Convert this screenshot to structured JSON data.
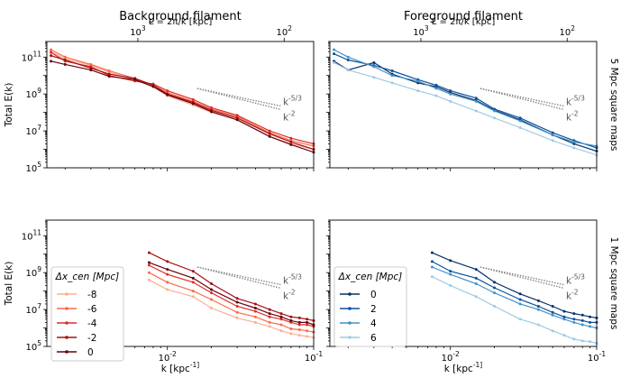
{
  "chart_data": [
    {
      "type": "line",
      "row": 0,
      "col": 0,
      "title": "Background filament",
      "top_axis_label": "L = 2π/k [kpc]",
      "top_ticks": [
        "10^3",
        "10^2"
      ],
      "xlabel": "",
      "ylabel": "Total E(k)",
      "xscale": "log",
      "yscale": "log",
      "xlim": [
        0.0015,
        0.1
      ],
      "ylim": [
        100000,
        700000000000
      ],
      "ref_lines": [
        {
          "label": "k^-5/3",
          "slope": -1.667
        },
        {
          "label": "k^-2",
          "slope": -2
        }
      ],
      "series": [
        {
          "name": "-8",
          "color": "#fcae91",
          "x": [
            0.0016,
            0.002,
            0.003,
            0.004,
            0.006,
            0.008,
            0.01,
            0.015,
            0.02,
            0.03,
            0.05,
            0.07,
            0.1
          ],
          "y": [
            200000000000,
            80000000000,
            35000000000,
            15000000000,
            6000000000,
            2500000000,
            800000000,
            250000000,
            100000000,
            40000000,
            5000000,
            2000000,
            1000000
          ]
        },
        {
          "name": "-6",
          "color": "#fb6a4a",
          "x": [
            0.0016,
            0.002,
            0.003,
            0.004,
            0.006,
            0.008,
            0.01,
            0.015,
            0.02,
            0.03,
            0.05,
            0.07,
            0.1
          ],
          "y": [
            250000000000,
            100000000000,
            40000000000,
            18000000000,
            7000000000,
            3000000000,
            1200000000,
            400000000,
            150000000,
            60000000,
            8000000,
            3000000,
            1500000
          ]
        },
        {
          "name": "-4",
          "color": "#de2d26",
          "x": [
            0.0016,
            0.002,
            0.003,
            0.004,
            0.006,
            0.008,
            0.01,
            0.015,
            0.02,
            0.03,
            0.05,
            0.07,
            0.1
          ],
          "y": [
            180000000000,
            60000000000,
            30000000000,
            10000000000,
            5000000000,
            3500000000,
            1500000000,
            500000000,
            180000000,
            70000000,
            10000000,
            4000000,
            2000000
          ]
        },
        {
          "name": "-2",
          "color": "#a50f15",
          "x": [
            0.0016,
            0.002,
            0.003,
            0.004,
            0.006,
            0.008,
            0.01,
            0.015,
            0.02,
            0.03,
            0.05,
            0.07,
            0.1
          ],
          "y": [
            120000000000,
            70000000000,
            25000000000,
            12000000000,
            7000000000,
            3000000000,
            1000000000,
            350000000,
            130000000,
            50000000,
            7000000,
            2500000,
            1000000
          ]
        },
        {
          "name": "0",
          "color": "#67000d",
          "x": [
            0.0016,
            0.002,
            0.003,
            0.004,
            0.006,
            0.008,
            0.01,
            0.015,
            0.02,
            0.03,
            0.05,
            0.07,
            0.1
          ],
          "y": [
            60000000000,
            40000000000,
            20000000000,
            9000000000,
            6000000000,
            2500000000,
            900000000,
            300000000,
            110000000,
            40000000,
            5000000,
            1800000,
            700000
          ]
        }
      ]
    },
    {
      "type": "line",
      "row": 0,
      "col": 1,
      "title": "Foreground filament",
      "top_axis_label": "L = 2π/k [kpc]",
      "top_ticks": [
        "10^3",
        "10^2"
      ],
      "xlabel": "",
      "ylabel": "",
      "right_label": "5 Mpc square maps",
      "xscale": "log",
      "yscale": "log",
      "xlim": [
        0.0015,
        0.1
      ],
      "ylim": [
        100000,
        700000000000
      ],
      "ref_lines": [
        {
          "label": "k^-5/3",
          "slope": -1.667
        },
        {
          "label": "k^-2",
          "slope": -2
        }
      ],
      "series": [
        {
          "name": "0",
          "color": "#08306b",
          "x": [
            0.0016,
            0.002,
            0.003,
            0.004,
            0.006,
            0.008,
            0.01,
            0.015,
            0.02,
            0.03,
            0.05,
            0.07,
            0.1
          ],
          "y": [
            60000000000,
            20000000000,
            50000000000,
            12000000000,
            4000000000,
            2500000000,
            1200000000,
            450000000,
            130000000,
            40000000,
            6000000,
            2000000,
            800000
          ]
        },
        {
          "name": "2",
          "color": "#08519c",
          "x": [
            0.0016,
            0.002,
            0.003,
            0.004,
            0.006,
            0.008,
            0.01,
            0.015,
            0.02,
            0.03,
            0.05,
            0.07,
            0.1
          ],
          "y": [
            150000000000,
            70000000000,
            35000000000,
            18000000000,
            6000000000,
            3000000000,
            1500000000,
            600000000,
            150000000,
            50000000,
            8000000,
            3000000,
            1200000
          ]
        },
        {
          "name": "4",
          "color": "#4292c6",
          "x": [
            0.0016,
            0.002,
            0.003,
            0.004,
            0.006,
            0.008,
            0.01,
            0.015,
            0.02,
            0.03,
            0.05,
            0.07,
            0.1
          ],
          "y": [
            250000000000,
            100000000000,
            30000000000,
            10000000000,
            5000000000,
            2000000000,
            1000000000,
            400000000,
            120000000,
            35000000,
            6000000,
            2500000,
            1500000
          ]
        },
        {
          "name": "6",
          "color": "#9ecae1",
          "x": [
            0.0016,
            0.002,
            0.003,
            0.004,
            0.006,
            0.008,
            0.01,
            0.015,
            0.02,
            0.03,
            0.05,
            0.07,
            0.1
          ],
          "y": [
            50000000000,
            20000000000,
            8000000000,
            4000000000,
            1500000000,
            800000000,
            400000000,
            120000000,
            50000000,
            15000000,
            3000000,
            1200000,
            500000
          ]
        }
      ]
    },
    {
      "type": "line",
      "row": 1,
      "col": 0,
      "title": "",
      "xlabel": "k [kpc^-1]",
      "ylabel": "Total E(k)",
      "xscale": "log",
      "yscale": "log",
      "xlim": [
        0.0015,
        0.1
      ],
      "ylim": [
        100000,
        700000000000
      ],
      "ref_lines": [
        {
          "label": "k^-5/3",
          "slope": -1.667
        },
        {
          "label": "k^-2",
          "slope": -2
        }
      ],
      "legend": {
        "title": "Δx_cen [Mpc]",
        "loc": "center-left"
      },
      "series": [
        {
          "name": "-8",
          "color": "#fcae91",
          "x": [
            0.0075,
            0.01,
            0.015,
            0.02,
            0.03,
            0.04,
            0.05,
            0.06,
            0.07,
            0.08,
            0.09,
            0.1
          ],
          "y": [
            400000000,
            120000000,
            50000000,
            12000000,
            3500000,
            2000000,
            1200000,
            700000,
            500000,
            400000,
            350000,
            300000
          ]
        },
        {
          "name": "-6",
          "color": "#fb6a4a",
          "x": [
            0.0075,
            0.01,
            0.015,
            0.02,
            0.03,
            0.04,
            0.05,
            0.06,
            0.07,
            0.08,
            0.09,
            0.1
          ],
          "y": [
            1000000000,
            300000000,
            100000000,
            35000000,
            7000000,
            4000000,
            2000000,
            1500000,
            900000,
            800000,
            700000,
            600000
          ]
        },
        {
          "name": "-4",
          "color": "#de2d26",
          "x": [
            0.0075,
            0.01,
            0.015,
            0.02,
            0.03,
            0.04,
            0.05,
            0.06,
            0.07,
            0.08,
            0.09,
            0.1
          ],
          "y": [
            2500000000,
            800000000,
            300000000,
            80000000,
            15000000,
            8000000,
            4000000,
            3000000,
            2000000,
            1500000,
            1500000,
            1200000
          ]
        },
        {
          "name": "-2",
          "color": "#a50f15",
          "x": [
            0.0075,
            0.01,
            0.015,
            0.02,
            0.03,
            0.04,
            0.05,
            0.06,
            0.07,
            0.08,
            0.09,
            0.1
          ],
          "y": [
            12000000000,
            4000000000,
            1200000000,
            250000000,
            40000000,
            20000000,
            10000000,
            6000000,
            4000000,
            3500000,
            3000000,
            2500000
          ]
        },
        {
          "name": "0",
          "color": "#67000d",
          "x": [
            0.0075,
            0.01,
            0.015,
            0.02,
            0.03,
            0.04,
            0.05,
            0.06,
            0.07,
            0.08,
            0.09,
            0.1
          ],
          "y": [
            3500000000,
            1500000000,
            500000000,
            120000000,
            25000000,
            12000000,
            6000000,
            4000000,
            2500000,
            2000000,
            2000000,
            1500000
          ]
        }
      ]
    },
    {
      "type": "line",
      "row": 1,
      "col": 1,
      "title": "",
      "xlabel": "k [kpc^-1]",
      "ylabel": "",
      "right_label": "1 Mpc square maps",
      "xscale": "log",
      "yscale": "log",
      "xlim": [
        0.0015,
        0.1
      ],
      "ylim": [
        100000,
        700000000000
      ],
      "ref_lines": [
        {
          "label": "k^-5/3",
          "slope": -1.667
        },
        {
          "label": "k^-2",
          "slope": -2
        }
      ],
      "legend": {
        "title": "Δx_cen [Mpc]",
        "loc": "center-left"
      },
      "series": [
        {
          "name": "0",
          "color": "#08306b",
          "x": [
            0.0075,
            0.01,
            0.015,
            0.02,
            0.03,
            0.04,
            0.05,
            0.06,
            0.07,
            0.08,
            0.09,
            0.1
          ],
          "y": [
            12000000000,
            4500000000,
            1500000000,
            300000000,
            70000000,
            30000000,
            15000000,
            8000000,
            6000000,
            5000000,
            4000000,
            3500000
          ]
        },
        {
          "name": "2",
          "color": "#08519c",
          "x": [
            0.0075,
            0.01,
            0.015,
            0.02,
            0.03,
            0.04,
            0.05,
            0.06,
            0.07,
            0.08,
            0.09,
            0.1
          ],
          "y": [
            4000000000,
            1200000000,
            500000000,
            150000000,
            35000000,
            15000000,
            7000000,
            4000000,
            3000000,
            2500000,
            2000000,
            2000000
          ]
        },
        {
          "name": "4",
          "color": "#4292c6",
          "x": [
            0.0075,
            0.01,
            0.015,
            0.02,
            0.03,
            0.04,
            0.05,
            0.06,
            0.07,
            0.08,
            0.09,
            0.1
          ],
          "y": [
            2000000000,
            800000000,
            250000000,
            80000000,
            20000000,
            10000000,
            5000000,
            3000000,
            2000000,
            1500000,
            1200000,
            1000000
          ]
        },
        {
          "name": "6",
          "color": "#9ecae1",
          "x": [
            0.0075,
            0.01,
            0.015,
            0.02,
            0.03,
            0.04,
            0.05,
            0.06,
            0.07,
            0.08,
            0.09,
            0.1
          ],
          "y": [
            600000000,
            200000000,
            50000000,
            15000000,
            3000000,
            1500000,
            700000,
            400000,
            250000,
            200000,
            180000,
            150000
          ]
        }
      ]
    }
  ]
}
